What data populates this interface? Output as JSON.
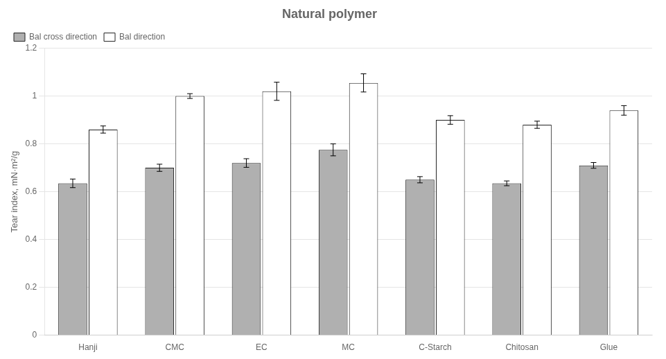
{
  "chart_data": {
    "type": "bar",
    "title": "Natural polymer",
    "categories": [
      "Hanji",
      "CMC",
      "EC",
      "MC",
      "C-Starch",
      "Chitosan",
      "Glue"
    ],
    "series": [
      {
        "name": "Bal cross direction",
        "color": "#b0b0b0",
        "values": [
          0.635,
          0.7,
          0.72,
          0.775,
          0.65,
          0.635,
          0.71
        ],
        "errors": [
          0.018,
          0.015,
          0.018,
          0.025,
          0.013,
          0.01,
          0.012
        ]
      },
      {
        "name": "Bal direction",
        "color": "#ffffff",
        "values": [
          0.86,
          1.0,
          1.02,
          1.055,
          0.9,
          0.88,
          0.94
        ],
        "errors": [
          0.015,
          0.01,
          0.038,
          0.038,
          0.018,
          0.015,
          0.02
        ]
      }
    ],
    "ylabel": "Tear index, mN·m²/g",
    "ylim": [
      0,
      1.2
    ],
    "yticks": [
      0,
      0.2,
      0.4,
      0.6,
      0.8,
      1,
      1.2
    ],
    "grid": true,
    "legend": "upper left"
  }
}
